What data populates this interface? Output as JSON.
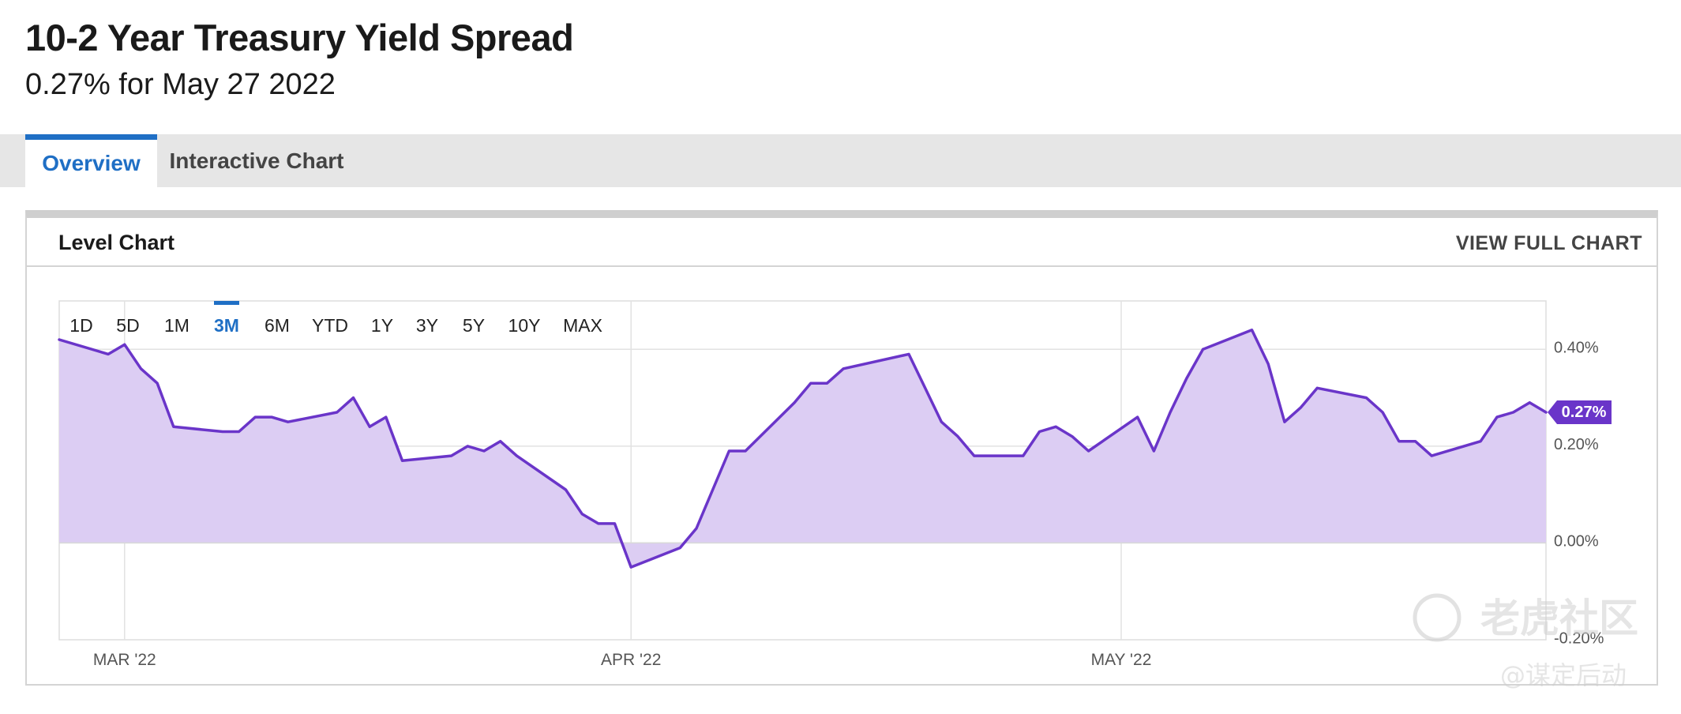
{
  "header": {
    "title": "10-2 Year Treasury Yield Spread",
    "subtitle": "0.27% for May 27 2022"
  },
  "tabs": [
    {
      "label": "Overview",
      "active": true
    },
    {
      "label": "Interactive Chart",
      "active": false
    }
  ],
  "card": {
    "title": "Level Chart",
    "view_full_label": "VIEW FULL CHART"
  },
  "ranges": {
    "options": [
      "1D",
      "5D",
      "1M",
      "3M",
      "6M",
      "YTD",
      "1Y",
      "3Y",
      "5Y",
      "10Y",
      "MAX"
    ],
    "selected": "3M"
  },
  "colors": {
    "line": "#6a35c9",
    "fill": "#dccdf3",
    "accent": "#1f6fc5",
    "badge": "#6a35c9"
  },
  "watermark": {
    "brand": "老虎社区",
    "handle": "@谋定后动"
  },
  "chart_data": {
    "type": "area",
    "ylim": [
      -0.2,
      0.5
    ],
    "xlim": [
      "2022-02-25",
      "2022-05-27"
    ],
    "y_ticks": [
      {
        "value": 0.4,
        "label": "0.40%"
      },
      {
        "value": 0.2,
        "label": "0.20%"
      },
      {
        "value": 0.0,
        "label": "0.00%"
      },
      {
        "value": -0.2,
        "label": "-0.20%"
      }
    ],
    "x_ticks": [
      {
        "date": "2022-03-01",
        "label": "MAR '22"
      },
      {
        "date": "2022-04-01",
        "label": "APR '22"
      },
      {
        "date": "2022-05-01",
        "label": "MAY '22"
      }
    ],
    "last_value_label": "0.27%",
    "grid": true,
    "series": [
      {
        "values": [
          {
            "x": "2022-02-25",
            "y": 0.42
          },
          {
            "x": "2022-02-28",
            "y": 0.39
          },
          {
            "x": "2022-03-01",
            "y": 0.41
          },
          {
            "x": "2022-03-02",
            "y": 0.36
          },
          {
            "x": "2022-03-03",
            "y": 0.33
          },
          {
            "x": "2022-03-04",
            "y": 0.24
          },
          {
            "x": "2022-03-07",
            "y": 0.23
          },
          {
            "x": "2022-03-08",
            "y": 0.23
          },
          {
            "x": "2022-03-09",
            "y": 0.26
          },
          {
            "x": "2022-03-10",
            "y": 0.26
          },
          {
            "x": "2022-03-11",
            "y": 0.25
          },
          {
            "x": "2022-03-14",
            "y": 0.27
          },
          {
            "x": "2022-03-15",
            "y": 0.3
          },
          {
            "x": "2022-03-16",
            "y": 0.24
          },
          {
            "x": "2022-03-17",
            "y": 0.26
          },
          {
            "x": "2022-03-18",
            "y": 0.17
          },
          {
            "x": "2022-03-21",
            "y": 0.18
          },
          {
            "x": "2022-03-22",
            "y": 0.2
          },
          {
            "x": "2022-03-23",
            "y": 0.19
          },
          {
            "x": "2022-03-24",
            "y": 0.21
          },
          {
            "x": "2022-03-25",
            "y": 0.18
          },
          {
            "x": "2022-03-28",
            "y": 0.11
          },
          {
            "x": "2022-03-29",
            "y": 0.06
          },
          {
            "x": "2022-03-30",
            "y": 0.04
          },
          {
            "x": "2022-03-31",
            "y": 0.04
          },
          {
            "x": "2022-04-01",
            "y": -0.05
          },
          {
            "x": "2022-04-04",
            "y": -0.01
          },
          {
            "x": "2022-04-05",
            "y": 0.03
          },
          {
            "x": "2022-04-06",
            "y": 0.11
          },
          {
            "x": "2022-04-07",
            "y": 0.19
          },
          {
            "x": "2022-04-08",
            "y": 0.19
          },
          {
            "x": "2022-04-11",
            "y": 0.29
          },
          {
            "x": "2022-04-12",
            "y": 0.33
          },
          {
            "x": "2022-04-13",
            "y": 0.33
          },
          {
            "x": "2022-04-14",
            "y": 0.36
          },
          {
            "x": "2022-04-18",
            "y": 0.39
          },
          {
            "x": "2022-04-19",
            "y": 0.32
          },
          {
            "x": "2022-04-20",
            "y": 0.25
          },
          {
            "x": "2022-04-21",
            "y": 0.22
          },
          {
            "x": "2022-04-22",
            "y": 0.18
          },
          {
            "x": "2022-04-25",
            "y": 0.18
          },
          {
            "x": "2022-04-26",
            "y": 0.23
          },
          {
            "x": "2022-04-27",
            "y": 0.24
          },
          {
            "x": "2022-04-28",
            "y": 0.22
          },
          {
            "x": "2022-04-29",
            "y": 0.19
          },
          {
            "x": "2022-05-02",
            "y": 0.26
          },
          {
            "x": "2022-05-03",
            "y": 0.19
          },
          {
            "x": "2022-05-04",
            "y": 0.27
          },
          {
            "x": "2022-05-05",
            "y": 0.34
          },
          {
            "x": "2022-05-06",
            "y": 0.4
          },
          {
            "x": "2022-05-09",
            "y": 0.44
          },
          {
            "x": "2022-05-10",
            "y": 0.37
          },
          {
            "x": "2022-05-11",
            "y": 0.25
          },
          {
            "x": "2022-05-12",
            "y": 0.28
          },
          {
            "x": "2022-05-13",
            "y": 0.32
          },
          {
            "x": "2022-05-16",
            "y": 0.3
          },
          {
            "x": "2022-05-17",
            "y": 0.27
          },
          {
            "x": "2022-05-18",
            "y": 0.21
          },
          {
            "x": "2022-05-19",
            "y": 0.21
          },
          {
            "x": "2022-05-20",
            "y": 0.18
          },
          {
            "x": "2022-05-23",
            "y": 0.21
          },
          {
            "x": "2022-05-24",
            "y": 0.26
          },
          {
            "x": "2022-05-25",
            "y": 0.27
          },
          {
            "x": "2022-05-26",
            "y": 0.29
          },
          {
            "x": "2022-05-27",
            "y": 0.27
          }
        ]
      }
    ]
  }
}
